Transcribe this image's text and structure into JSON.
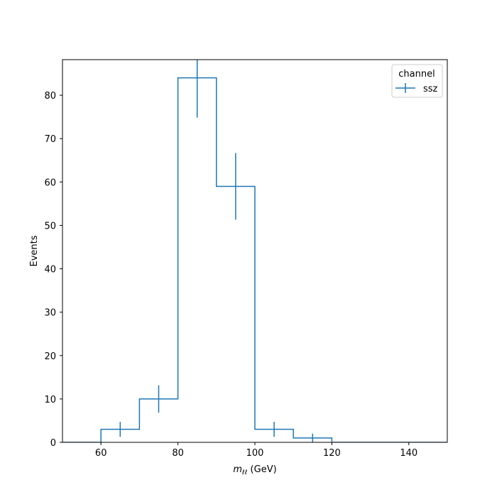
{
  "chart_data": {
    "type": "histogram",
    "bin_edges": [
      50,
      60,
      70,
      80,
      90,
      100,
      110,
      120,
      130,
      140,
      150
    ],
    "series": [
      {
        "name": "ssz",
        "counts": [
          0,
          3,
          10,
          84,
          59,
          3,
          1,
          0,
          0,
          0
        ],
        "errors": [
          0,
          1.73,
          3.16,
          9.17,
          7.68,
          1.73,
          1.0,
          0,
          0,
          0
        ],
        "color": "#1f77b4"
      }
    ],
    "xlabel_main": "m",
    "xlabel_sub": "ℓℓ",
    "xlabel_unit": " (GeV)",
    "ylabel": "Events",
    "xlim": [
      50,
      150
    ],
    "ylim": [
      0,
      88.2
    ],
    "x_ticks": [
      60,
      80,
      100,
      120,
      140
    ],
    "y_ticks": [
      0,
      10,
      20,
      30,
      40,
      50,
      60,
      70,
      80
    ],
    "legend": {
      "title": "channel",
      "position": "upper right",
      "entries": [
        "ssz"
      ]
    },
    "grid": false
  }
}
